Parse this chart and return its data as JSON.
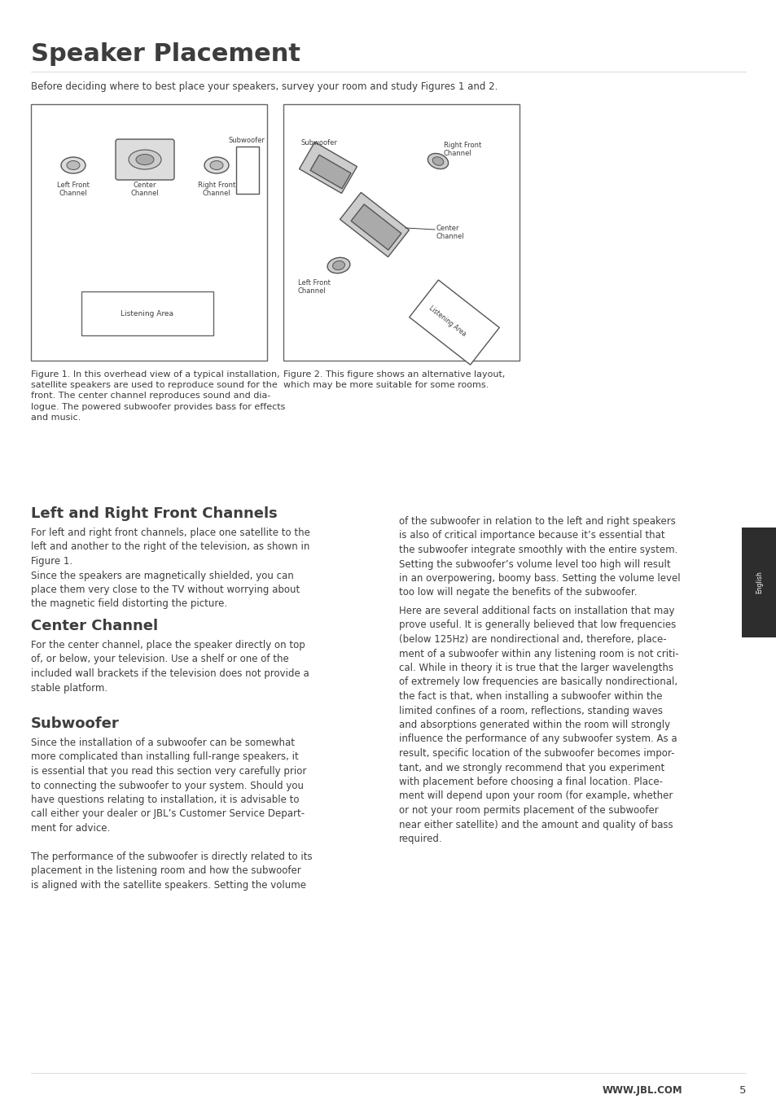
{
  "page_title": "Speaker Placement",
  "english_tab": "English",
  "intro_text": "Before deciding where to best place your speakers, survey your room and study Figures 1 and 2.",
  "section1_heading": "Left and Right Front Channels",
  "section1_body": "For left and right front channels, place one satellite to the\nleft and another to the right of the television, as shown in\nFigure 1.\nSince the speakers are magnetically shielded, you can\nplace them very close to the TV without worrying about\nthe magnetic field distorting the picture.",
  "section2_heading": "Center Channel",
  "section2_body": "For the center channel, place the speaker directly on top\nof, or below, your television. Use a shelf or one of the\nincluded wall brackets if the television does not provide a\nstable platform.",
  "section3_heading": "Subwoofer",
  "section3_body": "Since the installation of a subwoofer can be somewhat\nmore complicated than installing full-range speakers, it\nis essential that you read this section very carefully prior\nto connecting the subwoofer to your system. Should you\nhave questions relating to installation, it is advisable to\ncall either your dealer or JBL’s Customer Service Depart-\nment for advice.\n\nThe performance of the subwoofer is directly related to its\nplacement in the listening room and how the subwoofer\nis aligned with the satellite speakers. Setting the volume",
  "right_col_text1": "of the subwoofer in relation to the left and right speakers\nis also of critical importance because it’s essential that\nthe subwoofer integrate smoothly with the entire system.\nSetting the subwoofer’s volume level too high will result\nin an overpowering, boomy bass. Setting the volume level\ntoo low will negate the benefits of the subwoofer.",
  "right_col_text2": "Here are several additional facts on installation that may\nprove useful. It is generally believed that low frequencies\n(below 125Hz) are nondirectional and, therefore, place-\nment of a subwoofer within any listening room is not criti-\ncal. While in theory it is true that the larger wavelengths\nof extremely low frequencies are basically nondirectional,\nthe fact is that, when installing a subwoofer within the\nlimited confines of a room, reflections, standing waves\nand absorptions generated within the room will strongly\ninfluence the performance of any subwoofer system. As a\nresult, specific location of the subwoofer becomes impor-\ntant, and we strongly recommend that you experiment\nwith placement before choosing a final location. Place-\nment will depend upon your room (for example, whether\nor not your room permits placement of the subwoofer\nnear either satellite) and the amount and quality of bass\nrequired.",
  "fig1_caption": "Figure 1. In this overhead view of a typical installation,\nsatellite speakers are used to reproduce sound for the\nfront. The center channel reproduces sound and dia-\nlogue. The powered subwoofer provides bass for effects\nand music.",
  "fig2_caption": "Figure 2. This figure shows an alternative layout,\nwhich may be more suitable for some rooms.",
  "footer_url": "WWW.JBL.COM",
  "footer_page": "5",
  "bg_color": "#ffffff",
  "text_color": "#3d3d3d",
  "border_color": "#888888",
  "title_fontsize": 22,
  "heading_fontsize": 13,
  "body_fontsize": 8.5,
  "caption_fontsize": 8.0,
  "footer_fontsize": 8.5
}
